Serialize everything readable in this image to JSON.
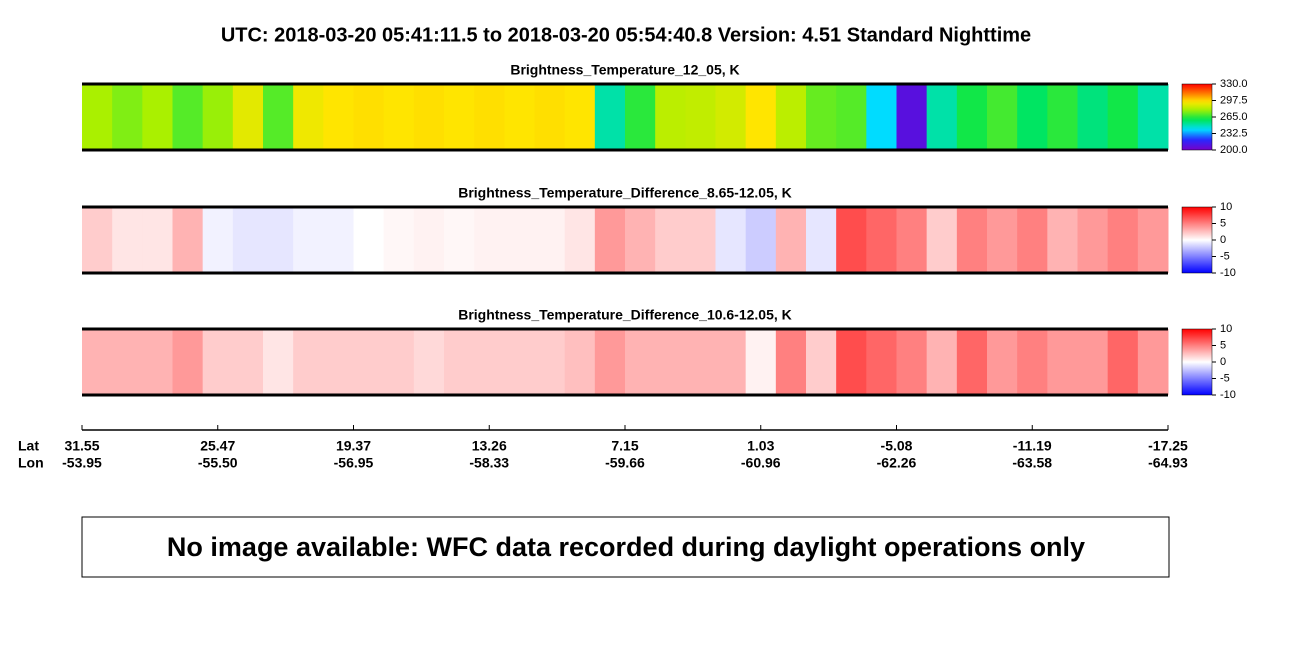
{
  "header": {
    "title": "UTC:  2018-03-20   05:41:11.5  to  2018-03-20   05:54:40.8    Version: 4.51  Standard Nighttime"
  },
  "chart_data": [
    {
      "type": "heatmap",
      "title": "Brightness_Temperature_12_05, K",
      "colormap": "rainbow",
      "vlim": [
        200,
        330
      ],
      "colorbar_ticks": [
        {
          "value": 330,
          "label": "330.0"
        },
        297.5,
        {
          "value": 265,
          "label": "265.0"
        },
        232.5,
        {
          "value": 200,
          "label": "200.0"
        }
      ],
      "values": [
        280,
        275,
        280,
        270,
        278,
        290,
        270,
        292,
        295,
        296,
        295,
        296,
        295,
        296,
        295,
        296,
        295,
        250,
        265,
        283,
        284,
        287,
        295,
        283,
        272,
        270,
        240,
        208,
        250,
        262,
        268,
        258,
        265,
        255,
        262,
        250
      ]
    },
    {
      "type": "heatmap",
      "title": "Brightness_Temperature_Difference_8.65-12.05, K",
      "colormap": "bwr",
      "vlim": [
        -10,
        10
      ],
      "colorbar_ticks": [
        10,
        5,
        0,
        -5,
        -10
      ],
      "values": [
        2,
        1,
        1,
        3,
        -0.5,
        -1,
        -1,
        -0.5,
        -0.5,
        0,
        0.3,
        0.5,
        0.3,
        0.5,
        0.5,
        0.5,
        1,
        4,
        3,
        2,
        2,
        -1,
        -2,
        3,
        -1,
        7,
        6,
        5,
        2,
        5,
        4,
        5,
        3,
        4,
        5,
        4
      ]
    },
    {
      "type": "heatmap",
      "title": "Brightness_Temperature_Difference_10.6-12.05, K",
      "colormap": "bwr",
      "vlim": [
        -10,
        10
      ],
      "colorbar_ticks": [
        10,
        5,
        0,
        -5,
        -10
      ],
      "values": [
        3,
        3,
        3,
        4,
        2,
        2,
        1,
        2,
        2,
        2,
        2,
        1.5,
        2,
        2,
        2,
        2,
        2.5,
        4,
        3,
        3,
        3,
        3,
        0.5,
        5,
        2,
        7,
        6,
        5,
        3,
        6,
        4,
        5,
        4,
        4,
        6,
        4
      ]
    }
  ],
  "x_axis": {
    "lat_label": "Lat",
    "lon_label": "Lon",
    "lat": [
      31.55,
      25.47,
      19.37,
      13.26,
      7.15,
      1.03,
      -5.08,
      -11.19,
      -17.25
    ],
    "lon": [
      -53.95,
      {
        "value": -55.5,
        "label": "-55.50"
      },
      -56.95,
      -58.33,
      -59.66,
      -60.96,
      -62.26,
      -63.58,
      -64.93
    ]
  },
  "notice": "No image available: WFC data recorded during daylight operations only"
}
